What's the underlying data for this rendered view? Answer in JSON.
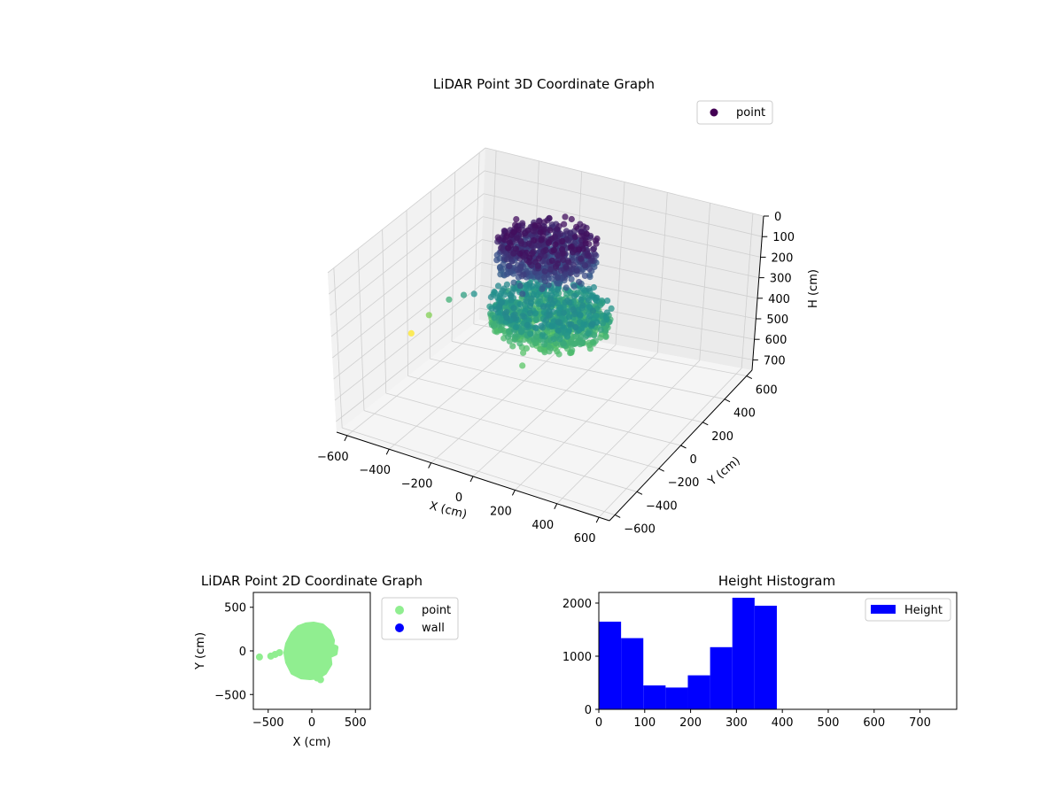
{
  "chart_data": [
    {
      "type": "scatter",
      "projection": "3d",
      "title": "LiDAR Point 3D Coordinate Graph",
      "xlabel": "X (cm)",
      "ylabel": "Y (cm)",
      "zlabel": "H (cm)",
      "xticks": [
        "−600",
        "−400",
        "−200",
        "0",
        "200",
        "400",
        "600"
      ],
      "yticks": [
        "−600",
        "−400",
        "−200",
        "0",
        "200",
        "400",
        "600"
      ],
      "zticks": [
        "0",
        "100",
        "200",
        "300",
        "400",
        "500",
        "600",
        "700"
      ],
      "xlim": [
        -650,
        650
      ],
      "ylim": [
        -650,
        650
      ],
      "zlim": [
        0,
        750
      ],
      "z_inverted": true,
      "colormap": "viridis",
      "legend": {
        "placement": "top-right",
        "entries": [
          "point"
        ]
      },
      "grid": true,
      "series": [
        {
          "name": "point",
          "color": "#440154",
          "description_points": [
            {
              "x": -80,
              "y": 100,
              "z": 80
            },
            {
              "x": 60,
              "y": 120,
              "z": 90
            },
            {
              "x": 150,
              "y": 20,
              "z": 120
            },
            {
              "x": -150,
              "y": -40,
              "z": 130
            },
            {
              "x": -20,
              "y": -150,
              "z": 140
            },
            {
              "x": 0,
              "y": 0,
              "z": 300
            },
            {
              "x": 100,
              "y": 150,
              "z": 330
            },
            {
              "x": -100,
              "y": 160,
              "z": 340
            },
            {
              "x": 200,
              "y": -60,
              "z": 350
            },
            {
              "x": -200,
              "y": -80,
              "z": 360
            },
            {
              "x": 20,
              "y": -220,
              "z": 370
            },
            {
              "x": -300,
              "y": -60,
              "z": 260
            },
            {
              "x": -360,
              "y": -40,
              "z": 290
            },
            {
              "x": -430,
              "y": -40,
              "z": 330
            },
            {
              "x": -520,
              "y": -50,
              "z": 420
            },
            {
              "x": -600,
              "y": -60,
              "z": 520
            },
            {
              "x": 60,
              "y": -300,
              "z": 380
            }
          ]
        }
      ]
    },
    {
      "type": "scatter",
      "title": "LiDAR Point 2D Coordinate Graph",
      "xlabel": "X (cm)",
      "ylabel": "Y (cm)",
      "xticks": [
        "−500",
        "0",
        "500"
      ],
      "yticks": [
        "−500",
        "0",
        "500"
      ],
      "xlim": [
        -670,
        670
      ],
      "ylim": [
        -670,
        670
      ],
      "legend": {
        "placement": "outside-right",
        "entries": [
          "point",
          "wall"
        ]
      },
      "series": [
        {
          "name": "point",
          "color": "#90ee90",
          "outline": [
            [
              -70,
              300
            ],
            [
              20,
              310
            ],
            [
              120,
              290
            ],
            [
              200,
              220
            ],
            [
              240,
              120
            ],
            [
              230,
              60
            ],
            [
              280,
              40
            ],
            [
              270,
              -30
            ],
            [
              200,
              -60
            ],
            [
              210,
              -150
            ],
            [
              150,
              -250
            ],
            [
              70,
              -300
            ],
            [
              -20,
              -310
            ],
            [
              -120,
              -300
            ],
            [
              -220,
              -250
            ],
            [
              -280,
              -130
            ],
            [
              -300,
              -20
            ],
            [
              -280,
              80
            ],
            [
              -220,
              200
            ],
            [
              -150,
              270
            ]
          ],
          "outliers": [
            [
              -600,
              -70
            ],
            [
              -470,
              -60
            ],
            [
              -420,
              -40
            ],
            [
              -370,
              -20
            ],
            [
              100,
              -330
            ],
            [
              60,
              -310
            ]
          ]
        },
        {
          "name": "wall",
          "color": "#0000ff",
          "points": []
        }
      ]
    },
    {
      "type": "bar",
      "subtype": "histogram",
      "title": "Height Histogram",
      "xticks": [
        "0",
        "100",
        "200",
        "300",
        "400",
        "500",
        "600",
        "700"
      ],
      "yticks": [
        "0",
        "1000",
        "2000"
      ],
      "xlim": [
        0,
        780
      ],
      "ylim": [
        0,
        2200
      ],
      "legend": {
        "placement": "top-right",
        "entries": [
          "Height"
        ]
      },
      "series": [
        {
          "name": "Height",
          "color": "#0000ff",
          "bin_edges": [
            0,
            48.5,
            97,
            145.5,
            194,
            242.5,
            291,
            339.5,
            388
          ],
          "values": [
            1650,
            1340,
            450,
            410,
            640,
            1170,
            2100,
            1950
          ]
        }
      ]
    }
  ]
}
